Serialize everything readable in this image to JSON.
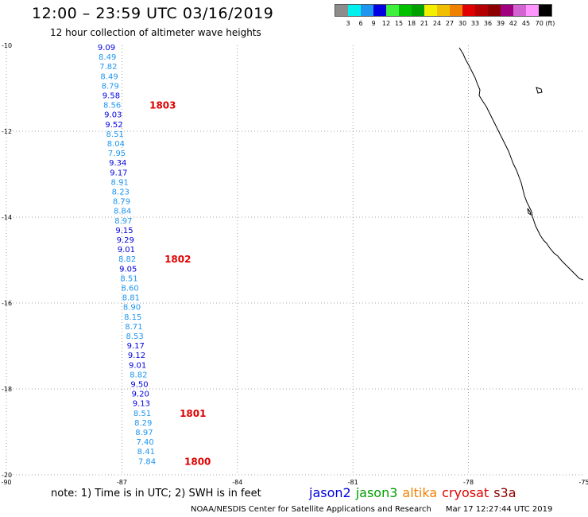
{
  "title": "12:00 – 23:59 UTC 03/16/2019",
  "subtitle": "12 hour collection of altimeter wave heights",
  "legend": {
    "colors": [
      "#8c8c8c",
      "#00f0f0",
      "#1e96f0",
      "#0000e0",
      "#3cf03c",
      "#00c000",
      "#00a000",
      "#f0f000",
      "#f0c000",
      "#f08000",
      "#e00000",
      "#b40000",
      "#8c0000",
      "#a00080",
      "#d264d2",
      "#ff96ff",
      "#000000"
    ],
    "labels": [
      "3",
      "6",
      "9",
      "12",
      "15",
      "18",
      "21",
      "24",
      "27",
      "30",
      "33",
      "36",
      "39",
      "42",
      "45",
      "70 (ft)"
    ]
  },
  "map": {
    "lat_ticks": [
      "-10",
      "-12",
      "-14",
      "-16",
      "-18",
      "-20"
    ],
    "lon_ticks": [
      "-90",
      "-87",
      "-84",
      "-81",
      "-78",
      "-75"
    ]
  },
  "track": {
    "swh_values": [
      "9.09",
      "8.49",
      "7.82",
      "8.49",
      "8.79",
      "9.58",
      "8.56",
      "9.03",
      "9.52",
      "8.51",
      "8.04",
      "7.95",
      "9.34",
      "9.17",
      "8.91",
      "8.23",
      "8.79",
      "8.84",
      "8.97",
      "9.15",
      "9.29",
      "9.01",
      "8.82",
      "9.05",
      "8.51",
      "8.60",
      "8.81",
      "8.90",
      "8.15",
      "8.71",
      "8.53",
      "9.17",
      "9.12",
      "9.01",
      "8.82",
      "9.50",
      "9.20",
      "9.13",
      "8.51",
      "8.29",
      "8.97",
      "7.40",
      "8.41",
      "7.84"
    ],
    "time_labels": [
      "1803",
      "1802",
      "1801",
      "1800"
    ]
  },
  "note": "note:  1) Time is in UTC;  2) SWH is in feet",
  "satellites": [
    {
      "name": "jason2",
      "color": "#0000e0"
    },
    {
      "name": "jason3",
      "color": "#00a000"
    },
    {
      "name": "altika",
      "color": "#f08000"
    },
    {
      "name": "cryosat",
      "color": "#e00000"
    },
    {
      "name": "s3a",
      "color": "#8c0000"
    }
  ],
  "footer": {
    "credit": "NOAA/NESDIS Center for Satellite Applications and Research",
    "timestamp": "Mar 17 12:27:44 UTC 2019"
  }
}
